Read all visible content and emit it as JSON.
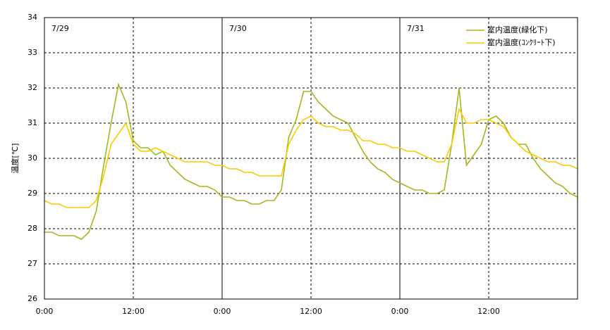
{
  "chart_data": {
    "type": "line",
    "y_label": "温度[℃]",
    "x": [
      0,
      1,
      2,
      3,
      4,
      5,
      6,
      7,
      8,
      9,
      10,
      11,
      12,
      13,
      14,
      15,
      16,
      17,
      18,
      19,
      20,
      21,
      22,
      23,
      24,
      25,
      26,
      27,
      28,
      29,
      30,
      31,
      32,
      33,
      34,
      35,
      36,
      37,
      38,
      39,
      40,
      41,
      42,
      43,
      44,
      45,
      46,
      47,
      48,
      49,
      50,
      51,
      52,
      53,
      54,
      55,
      56,
      57,
      58,
      59,
      60,
      61,
      62,
      63,
      64,
      65,
      66,
      67,
      68,
      69,
      70,
      71,
      72
    ],
    "series": [
      {
        "name": "室内温度(緑化下)",
        "color": "#9bbb1e",
        "values": [
          27.9,
          27.9,
          27.8,
          27.8,
          27.8,
          27.7,
          27.9,
          28.5,
          29.8,
          31.0,
          32.1,
          31.6,
          30.5,
          30.3,
          30.3,
          30.1,
          30.2,
          29.8,
          29.6,
          29.4,
          29.3,
          29.2,
          29.2,
          29.1,
          28.9,
          28.9,
          28.8,
          28.8,
          28.7,
          28.7,
          28.8,
          28.8,
          29.1,
          30.6,
          31.1,
          31.9,
          31.9,
          31.6,
          31.4,
          31.2,
          31.1,
          31.0,
          30.6,
          30.2,
          29.9,
          29.7,
          29.6,
          29.4,
          29.3,
          29.2,
          29.1,
          29.1,
          29.0,
          29.0,
          29.1,
          30.4,
          32.0,
          29.8,
          30.1,
          30.4,
          31.1,
          31.2,
          31.0,
          30.6,
          30.4,
          30.4,
          30.0,
          29.7,
          29.5,
          29.3,
          29.2,
          29.0,
          28.9
        ]
      },
      {
        "name": "室内温度(ｺﾝｸﾘｰﾄ下)",
        "color": "#ffc800",
        "values": [
          28.8,
          28.7,
          28.7,
          28.6,
          28.6,
          28.6,
          28.6,
          28.8,
          29.5,
          30.4,
          30.7,
          31.0,
          30.4,
          30.2,
          30.2,
          30.3,
          30.2,
          30.1,
          30.0,
          29.9,
          29.9,
          29.9,
          29.9,
          29.8,
          29.8,
          29.7,
          29.7,
          29.6,
          29.6,
          29.5,
          29.5,
          29.5,
          29.5,
          30.4,
          30.8,
          31.1,
          31.2,
          31.0,
          30.9,
          30.9,
          30.8,
          30.8,
          30.7,
          30.5,
          30.5,
          30.4,
          30.4,
          30.3,
          30.3,
          30.2,
          30.2,
          30.1,
          30.0,
          29.9,
          29.9,
          30.4,
          31.4,
          31.0,
          31.0,
          31.1,
          31.1,
          31.0,
          30.9,
          30.6,
          30.4,
          30.2,
          30.1,
          30.0,
          29.9,
          29.9,
          29.8,
          29.8,
          29.7
        ]
      }
    ],
    "xlim": [
      0,
      72
    ],
    "xticks": [
      {
        "value": 0,
        "label": "0:00"
      },
      {
        "value": 12,
        "label": "12:00"
      },
      {
        "value": 24,
        "label": "0:00"
      },
      {
        "value": 36,
        "label": "12:00"
      },
      {
        "value": 48,
        "label": "0:00"
      },
      {
        "value": 60,
        "label": "12:00"
      }
    ],
    "ylim": [
      26,
      34
    ],
    "yticks": [
      26,
      27,
      28,
      29,
      30,
      31,
      32,
      33,
      34
    ],
    "annotations": [
      {
        "text": "7/29",
        "x": 0
      },
      {
        "text": "7/30",
        "x": 24
      },
      {
        "text": "7/31",
        "x": 48
      }
    ],
    "grid": true,
    "legend": "upper right"
  }
}
